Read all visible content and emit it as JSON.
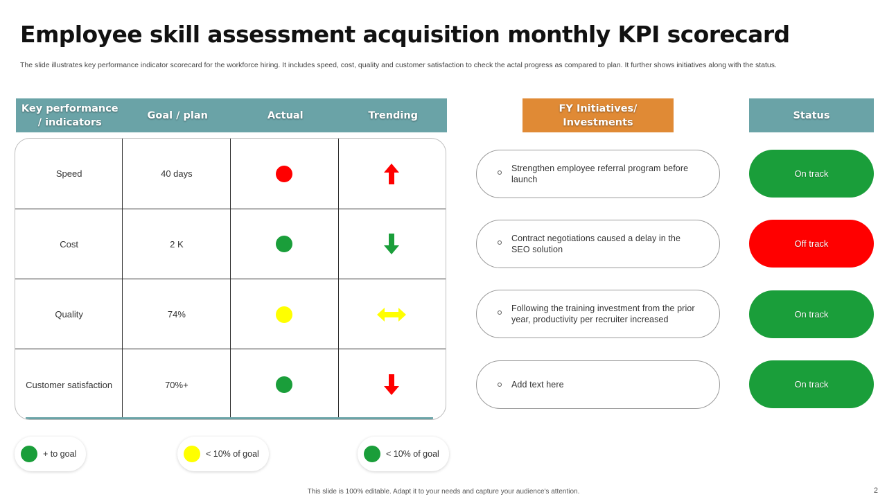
{
  "title": "Employee skill assessment acquisition monthly KPI scorecard",
  "subtitle": "The slide illustrates key performance indicator scorecard for the workforce hiring. It includes speed, cost, quality and customer satisfaction to check the actal progress as compared to plan. It further shows initiatives along with the status.",
  "colors": {
    "teal": "#6aa3a7",
    "orange": "#e08a35",
    "green": "#1a9e3a",
    "red": "#ff0000",
    "yellow": "#ffff00"
  },
  "kpi_table": {
    "headers": [
      "Key performance / indicators",
      "Goal / plan",
      "Actual",
      "Trending"
    ],
    "rows": [
      {
        "indicator": "Speed",
        "goal": "40 days",
        "actual_status": "red",
        "trend": "up",
        "trend_color": "red"
      },
      {
        "indicator": "Cost",
        "goal": "2 K",
        "actual_status": "green",
        "trend": "down",
        "trend_color": "green"
      },
      {
        "indicator": "Quality",
        "goal": "74%",
        "actual_status": "yellow",
        "trend": "flat",
        "trend_color": "yellow"
      },
      {
        "indicator": "Customer satisfaction",
        "goal": "70%+",
        "actual_status": "green",
        "trend": "down",
        "trend_color": "red"
      }
    ]
  },
  "initiatives": {
    "header": "FY Initiatives/ Investments",
    "items": [
      "Strengthen employee referral program before launch",
      "Contract negotiations caused a delay in the SEO solution",
      "Following the training investment from the prior year, productivity per recruiter increased",
      "Add text here"
    ]
  },
  "status": {
    "header": "Status",
    "items": [
      {
        "label": "On track",
        "color": "green"
      },
      {
        "label": "Off track",
        "color": "red"
      },
      {
        "label": "On track",
        "color": "green"
      },
      {
        "label": "On track",
        "color": "green"
      }
    ]
  },
  "legend": [
    {
      "label": "+ to goal",
      "color": "green"
    },
    {
      "label": "< 10% of goal",
      "color": "yellow"
    },
    {
      "label": "< 10% of goal",
      "color": "green"
    }
  ],
  "footer": "This slide is 100% editable. Adapt it to your needs and capture your audience's attention.",
  "page_number": "2"
}
